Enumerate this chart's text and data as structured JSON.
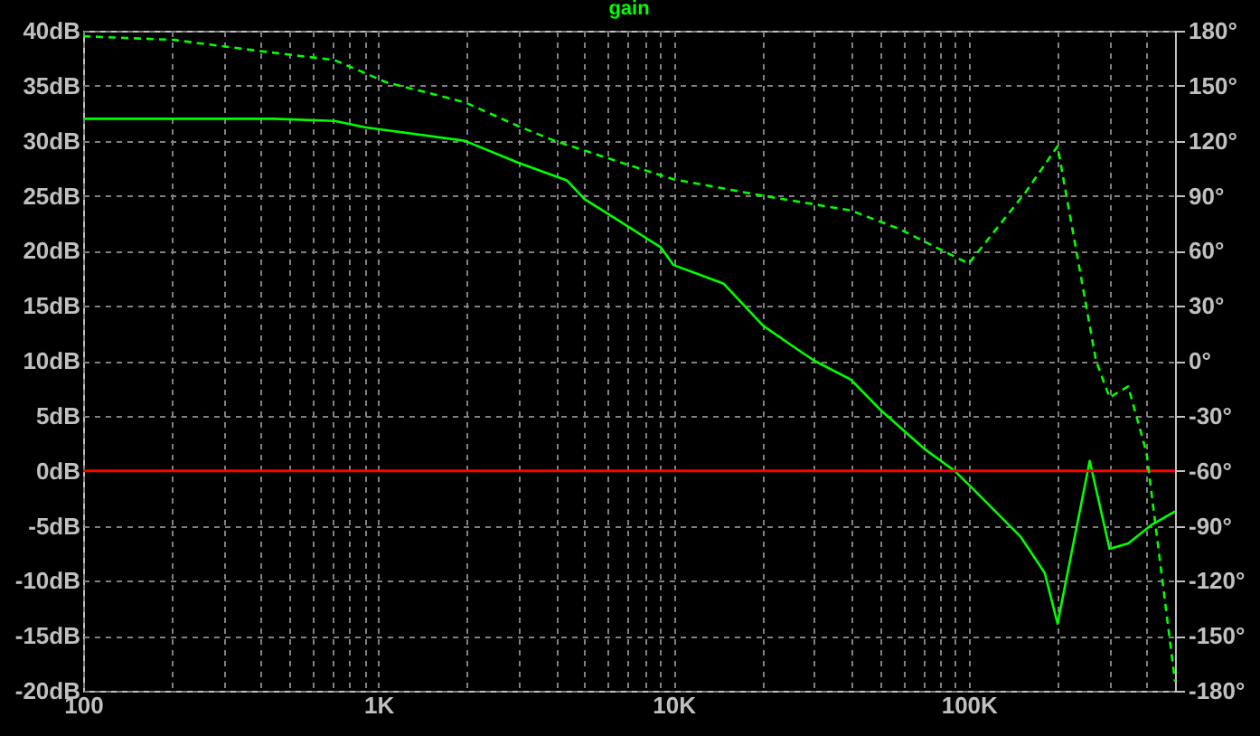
{
  "chart_data": {
    "type": "line",
    "title": "gain",
    "log": "x",
    "grid": true,
    "line_style": "solid",
    "marker": "none",
    "xlim": [
      100,
      500000
    ],
    "xticks": [
      {
        "value": 100,
        "label": "100"
      },
      {
        "value": 200,
        "label": null
      },
      {
        "value": 300,
        "label": null
      },
      {
        "value": 400,
        "label": null
      },
      {
        "value": 500,
        "label": null
      },
      {
        "value": 600,
        "label": null
      },
      {
        "value": 700,
        "label": null
      },
      {
        "value": 800,
        "label": null
      },
      {
        "value": 900,
        "label": null
      },
      {
        "value": 1000,
        "label": "1K"
      },
      {
        "value": 2000,
        "label": null
      },
      {
        "value": 3000,
        "label": null
      },
      {
        "value": 4000,
        "label": null
      },
      {
        "value": 5000,
        "label": null
      },
      {
        "value": 6000,
        "label": null
      },
      {
        "value": 7000,
        "label": null
      },
      {
        "value": 8000,
        "label": null
      },
      {
        "value": 9000,
        "label": null
      },
      {
        "value": 10000,
        "label": "10K"
      },
      {
        "value": 20000,
        "label": null
      },
      {
        "value": 30000,
        "label": null
      },
      {
        "value": 40000,
        "label": null
      },
      {
        "value": 50000,
        "label": null
      },
      {
        "value": 60000,
        "label": null
      },
      {
        "value": 70000,
        "label": null
      },
      {
        "value": 80000,
        "label": null
      },
      {
        "value": 90000,
        "label": null
      },
      {
        "value": 100000,
        "label": "100K"
      },
      {
        "value": 200000,
        "label": null
      },
      {
        "value": 300000,
        "label": null
      },
      {
        "value": 400000,
        "label": null
      },
      {
        "value": 500000,
        "label": null
      }
    ],
    "ylim": [
      -20,
      40
    ],
    "yticks": [
      {
        "value": -20,
        "label": "-20dB"
      },
      {
        "value": -15,
        "label": "-15dB"
      },
      {
        "value": -10,
        "label": "-10dB"
      },
      {
        "value": -5,
        "label": "-5dB"
      },
      {
        "value": 0,
        "label": "0dB"
      },
      {
        "value": 5,
        "label": "5dB"
      },
      {
        "value": 10,
        "label": "10dB"
      },
      {
        "value": 15,
        "label": "15dB"
      },
      {
        "value": 20,
        "label": "20dB"
      },
      {
        "value": 25,
        "label": "25dB"
      },
      {
        "value": 30,
        "label": "30dB"
      },
      {
        "value": 35,
        "label": "35dB"
      },
      {
        "value": 40,
        "label": "40dB"
      }
    ],
    "y2lim": [
      -180,
      180
    ],
    "y2ticks": [
      {
        "value": -180,
        "label": "-180°"
      },
      {
        "value": -150,
        "label": "-150°"
      },
      {
        "value": -120,
        "label": "-120°"
      },
      {
        "value": -90,
        "label": "-90°"
      },
      {
        "value": -60,
        "label": "-60°"
      },
      {
        "value": -30,
        "label": "-30°"
      },
      {
        "value": 0,
        "label": "0°"
      },
      {
        "value": 30,
        "label": "30°"
      },
      {
        "value": 60,
        "label": "60°"
      },
      {
        "value": 90,
        "label": "90°"
      },
      {
        "value": 120,
        "label": "120°"
      },
      {
        "value": 150,
        "label": "150°"
      },
      {
        "value": 180,
        "label": "180°"
      }
    ],
    "ref_lines": [
      {
        "axis": "y",
        "value": 0,
        "color": "#ff0000"
      }
    ],
    "series": [
      {
        "color": "#00ff00",
        "x": [
          100,
          443,
          710,
          910,
          1960,
          2980,
          4350,
          4990,
          7300,
          9060,
          10000,
          14800,
          20100,
          24800,
          30000,
          39800,
          50400,
          70700,
          89500,
          103000,
          150000,
          181000,
          200000,
          257000,
          300000,
          347000,
          417000,
          500000
        ],
        "values": [
          32,
          32,
          31.8,
          31.2,
          30,
          28,
          26.4,
          24.7,
          21.9,
          20.3,
          18.7,
          17,
          13.2,
          11.5,
          10,
          8.3,
          5.5,
          2,
          0,
          -1.6,
          -6,
          -9.3,
          -13.9,
          0.9,
          -7.1,
          -6.6,
          -4.9,
          -3.7
        ]
      },
      {
        "color": "#00ff00",
        "axis": "y2",
        "line_style": "dashed",
        "x": [
          100,
          203,
          393,
          710,
          1060,
          1960,
          2980,
          3950,
          7300,
          10000,
          20100,
          39800,
          58000,
          100000,
          156000,
          200000,
          270000,
          300000,
          347000,
          400000,
          500000
        ],
        "values": [
          177,
          175,
          169,
          164,
          152,
          141,
          128,
          120,
          106,
          99,
          90,
          82,
          72,
          53,
          92,
          117,
          0,
          -20,
          -14,
          -50,
          -175
        ]
      }
    ]
  }
}
